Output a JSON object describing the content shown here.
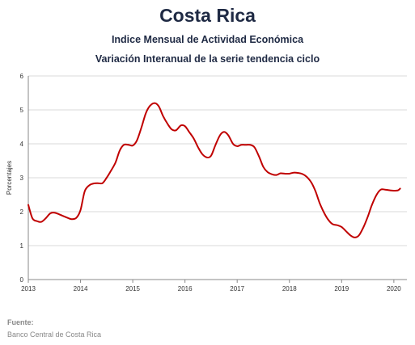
{
  "chart_data": {
    "type": "line",
    "title": "Costa Rica",
    "subtitle": "Indice Mensual de  Actividad Económica",
    "subtitle2": "Variación Interanual de la serie tendencia ciclo",
    "xlabel": "",
    "ylabel": "Porcentajes",
    "xlim": [
      2013,
      2020.25
    ],
    "ylim": [
      0,
      6
    ],
    "yticks": [
      0,
      1,
      2,
      3,
      4,
      5,
      6
    ],
    "xticks": [
      "2013",
      "2014",
      "2015",
      "2016",
      "2017",
      "2018",
      "2019",
      "2020"
    ],
    "grid": "horizontal",
    "legend": "none",
    "series": [
      {
        "color": "#c00000",
        "x": [
          2013.0,
          2013.08,
          2013.17,
          2013.25,
          2013.33,
          2013.42,
          2013.5,
          2013.58,
          2013.67,
          2013.75,
          2013.83,
          2013.92,
          2014.0,
          2014.08,
          2014.17,
          2014.25,
          2014.33,
          2014.42,
          2014.5,
          2014.58,
          2014.67,
          2014.75,
          2014.83,
          2014.92,
          2015.0,
          2015.08,
          2015.17,
          2015.25,
          2015.33,
          2015.42,
          2015.5,
          2015.58,
          2015.67,
          2015.75,
          2015.83,
          2015.92,
          2016.0,
          2016.08,
          2016.17,
          2016.25,
          2016.33,
          2016.42,
          2016.5,
          2016.58,
          2016.67,
          2016.75,
          2016.83,
          2016.92,
          2017.0,
          2017.08,
          2017.17,
          2017.25,
          2017.33,
          2017.42,
          2017.5,
          2017.58,
          2017.67,
          2017.75,
          2017.83,
          2017.92,
          2018.0,
          2018.08,
          2018.17,
          2018.25,
          2018.33,
          2018.42,
          2018.5,
          2018.58,
          2018.67,
          2018.75,
          2018.83,
          2018.92,
          2019.0,
          2019.08,
          2019.17,
          2019.25,
          2019.33,
          2019.42,
          2019.5,
          2019.58,
          2019.67,
          2019.75,
          2019.83,
          2019.92,
          2020.0,
          2020.08,
          2020.12
        ],
        "y": [
          2.2,
          1.8,
          1.72,
          1.7,
          1.8,
          1.95,
          1.97,
          1.93,
          1.87,
          1.82,
          1.78,
          1.82,
          2.05,
          2.6,
          2.78,
          2.83,
          2.84,
          2.84,
          3.0,
          3.2,
          3.45,
          3.8,
          3.97,
          3.97,
          3.95,
          4.1,
          4.5,
          4.9,
          5.12,
          5.2,
          5.1,
          4.82,
          4.58,
          4.42,
          4.4,
          4.54,
          4.52,
          4.35,
          4.15,
          3.9,
          3.7,
          3.6,
          3.65,
          3.95,
          4.25,
          4.35,
          4.25,
          4.0,
          3.93,
          3.97,
          3.97,
          3.97,
          3.9,
          3.62,
          3.32,
          3.17,
          3.1,
          3.08,
          3.13,
          3.12,
          3.12,
          3.15,
          3.14,
          3.11,
          3.03,
          2.86,
          2.6,
          2.25,
          1.95,
          1.75,
          1.63,
          1.6,
          1.55,
          1.43,
          1.3,
          1.24,
          1.3,
          1.55,
          1.85,
          2.2,
          2.5,
          2.65,
          2.65,
          2.63,
          2.62,
          2.63,
          2.68
        ]
      }
    ]
  },
  "source": {
    "label": "Fuente:",
    "text": "Banco Central de Costa Rica"
  }
}
